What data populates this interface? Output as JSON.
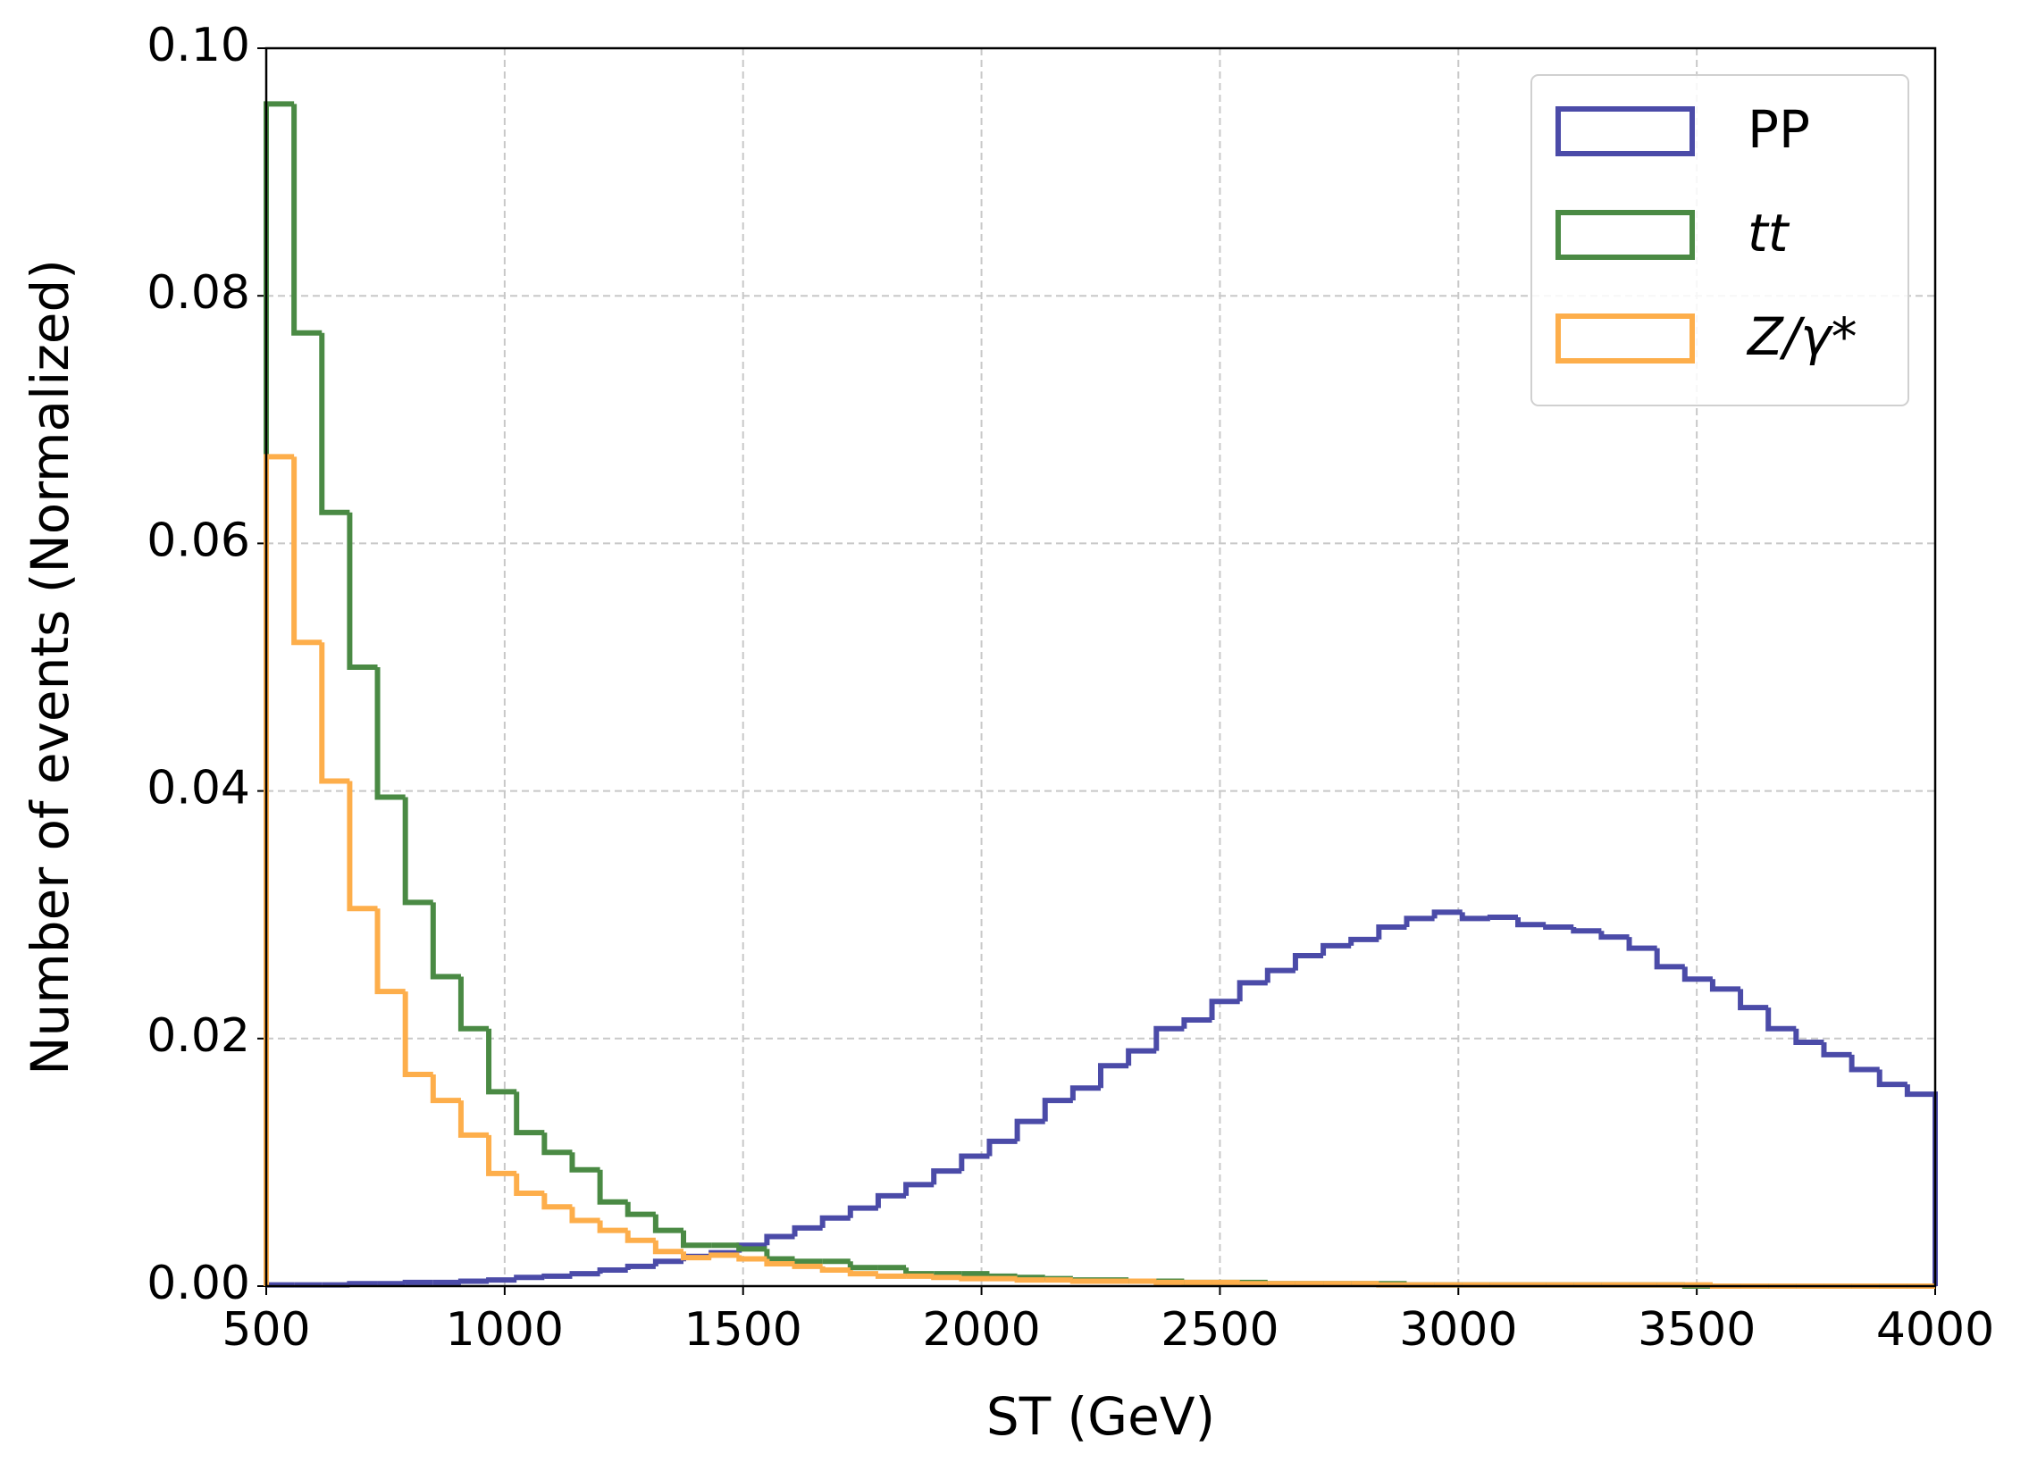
{
  "chart_data": {
    "type": "histogram",
    "x_label": "ST (GeV)",
    "y_label": "Number of events (Normalized)",
    "bins": [
      500,
      558.33,
      616.67,
      675,
      733.33,
      791.67,
      850,
      908.33,
      966.67,
      1025,
      1083.33,
      1141.67,
      1200,
      1258.33,
      1316.67,
      1375,
      1433.33,
      1491.67,
      1550,
      1608.33,
      1666.67,
      1725,
      1783.33,
      1841.67,
      1900,
      1958.33,
      2016.67,
      2075,
      2133.33,
      2191.67,
      2250,
      2308.33,
      2366.67,
      2425,
      2483.33,
      2541.67,
      2600,
      2658.33,
      2716.67,
      2775,
      2833.33,
      2891.67,
      2950,
      3008.33,
      3066.67,
      3125,
      3183.33,
      3241.67,
      3300,
      3358.33,
      3416.67,
      3475,
      3533.33,
      3591.67,
      3650,
      3708.33,
      3766.67,
      3825,
      3883.33,
      3941.67,
      4000
    ],
    "series": [
      {
        "name": "PP",
        "color": "#4b4ba8",
        "values": [
          0.0001,
          0.0001,
          0.0001,
          0.0002,
          0.0002,
          0.0003,
          0.0003,
          0.0004,
          0.0005,
          0.0007,
          0.0008,
          0.001,
          0.0013,
          0.0016,
          0.002,
          0.0024,
          0.0027,
          0.0033,
          0.004,
          0.0047,
          0.0055,
          0.0063,
          0.0073,
          0.0082,
          0.0093,
          0.0105,
          0.0117,
          0.0133,
          0.015,
          0.016,
          0.0178,
          0.019,
          0.0208,
          0.0215,
          0.023,
          0.0245,
          0.0255,
          0.0267,
          0.0275,
          0.028,
          0.029,
          0.0297,
          0.0302,
          0.0297,
          0.0298,
          0.0292,
          0.029,
          0.0287,
          0.0282,
          0.0273,
          0.0258,
          0.0248,
          0.024,
          0.0225,
          0.0208,
          0.0197,
          0.0187,
          0.0175,
          0.0163,
          0.0155
        ]
      },
      {
        "name": "tt",
        "color": "#4a8a44",
        "values": [
          0.0955,
          0.077,
          0.0625,
          0.05,
          0.0395,
          0.031,
          0.025,
          0.0208,
          0.0157,
          0.0124,
          0.0108,
          0.0094,
          0.0068,
          0.0058,
          0.0045,
          0.0033,
          0.0033,
          0.003,
          0.0022,
          0.002,
          0.002,
          0.0015,
          0.0015,
          0.001,
          0.001,
          0.001,
          0.0008,
          0.0007,
          0.0006,
          0.0005,
          0.0005,
          0.0004,
          0.0004,
          0.0003,
          0.0003,
          0.0003,
          0.0002,
          0.0002,
          0.0002,
          0.0002,
          0.0002,
          0.0001,
          0.0001,
          0.0001,
          0.0001,
          0.0001,
          0.0001,
          0.0001,
          0.0001,
          0.0001,
          0.0001,
          0,
          0,
          0,
          0,
          0,
          0,
          0,
          0,
          0
        ]
      },
      {
        "name": "Z/γ*",
        "color": "#fdae4b",
        "values": [
          0.067,
          0.052,
          0.0408,
          0.0305,
          0.0238,
          0.0171,
          0.015,
          0.0122,
          0.0091,
          0.0075,
          0.0064,
          0.0053,
          0.0045,
          0.0037,
          0.0028,
          0.0023,
          0.0025,
          0.0022,
          0.0018,
          0.0016,
          0.0013,
          0.001,
          0.0008,
          0.0008,
          0.0007,
          0.0006,
          0.0006,
          0.0005,
          0.0005,
          0.0004,
          0.0004,
          0.0004,
          0.0003,
          0.0003,
          0.0003,
          0.0002,
          0.0002,
          0.0002,
          0.0002,
          0.0002,
          0.0001,
          0.0001,
          0.0001,
          0.0001,
          0.0001,
          0.0001,
          0.0001,
          0.0001,
          0.0001,
          0.0001,
          0.0001,
          0.0001,
          0,
          0,
          0,
          0,
          0,
          0,
          0,
          0
        ]
      }
    ],
    "xlim": [
      500,
      4000
    ],
    "ylim": [
      0,
      0.1
    ],
    "xticks": [
      500,
      1000,
      1500,
      2000,
      2500,
      3000,
      3500,
      4000
    ],
    "yticks": [
      {
        "value": 0,
        "label": "0.00"
      },
      {
        "value": 0.02,
        "label": "0.02"
      },
      {
        "value": 0.04,
        "label": "0.04"
      },
      {
        "value": 0.06,
        "label": "0.06"
      },
      {
        "value": 0.08,
        "label": "0.08"
      },
      {
        "value": 0.1,
        "label": "0.10"
      }
    ],
    "grid": true,
    "legend": "upper right"
  }
}
